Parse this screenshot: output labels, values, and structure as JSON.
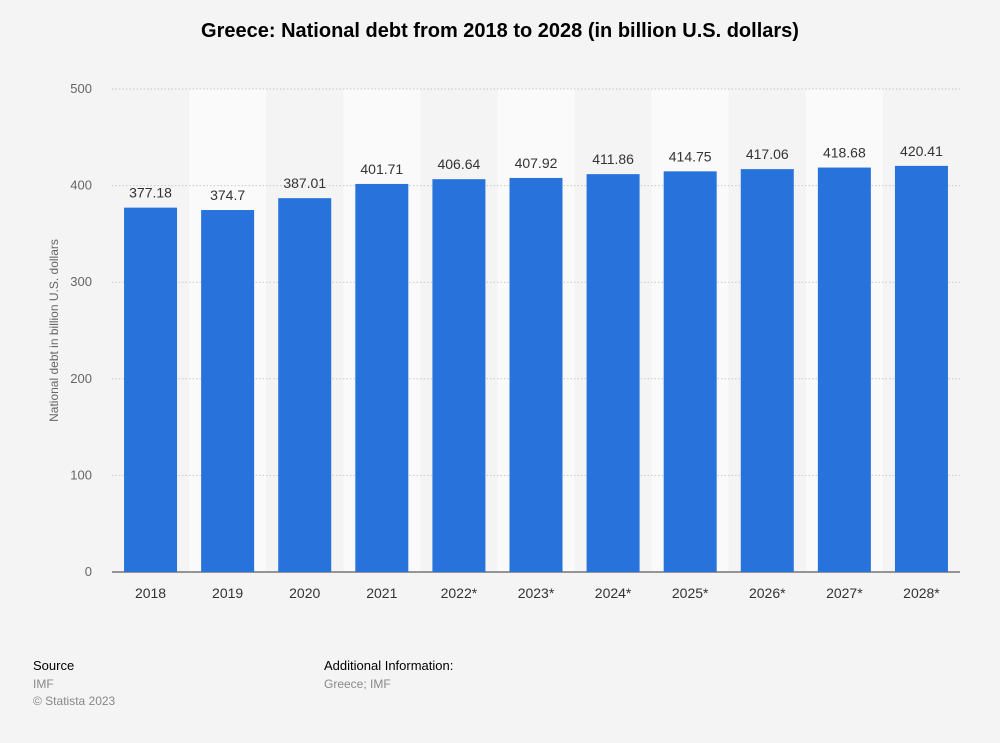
{
  "chart_data": {
    "type": "bar",
    "title": "Greece: National debt from 2018 to 2028 (in billion U.S. dollars)",
    "xlabel": "",
    "ylabel": "National debt in billion U.S. dollars",
    "categories": [
      "2018",
      "2019",
      "2020",
      "2021",
      "2022*",
      "2023*",
      "2024*",
      "2025*",
      "2026*",
      "2027*",
      "2028*"
    ],
    "values": [
      377.18,
      374.7,
      387.01,
      401.71,
      406.64,
      407.92,
      411.86,
      414.75,
      417.06,
      418.68,
      420.41
    ],
    "value_labels": [
      "377.18",
      "374.7",
      "387.01",
      "401.71",
      "406.64",
      "407.92",
      "411.86",
      "414.75",
      "417.06",
      "418.68",
      "420.41"
    ],
    "ylim": [
      0,
      500
    ],
    "yticks": [
      0,
      100,
      200,
      300,
      400,
      500
    ],
    "grid": true,
    "bar_color": "#2872dc",
    "alt_column_shading": "#fafafa",
    "legend": "none"
  },
  "footer": {
    "source_heading": "Source",
    "source_name": "IMF",
    "copyright": "© Statista 2023",
    "info_heading": "Additional Information:",
    "info_text": "Greece; IMF"
  }
}
